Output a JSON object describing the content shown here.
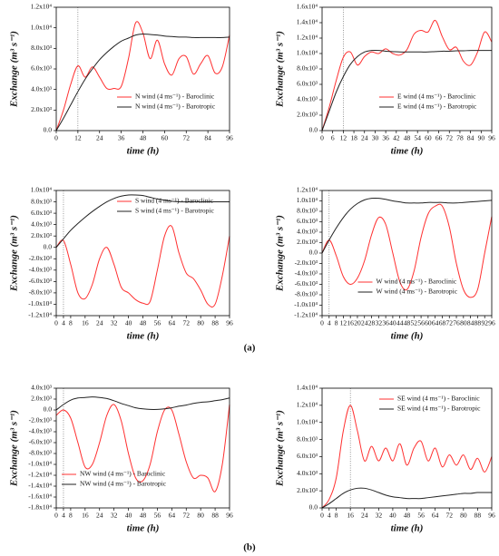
{
  "chart_data": [
    {
      "type": "line",
      "x_label": "time (h)",
      "y_label": "Exchange (m³ s⁻¹)",
      "legend": "lower right",
      "vline": 12,
      "xlim": [
        0,
        96
      ],
      "xticks": [
        0,
        12,
        24,
        36,
        48,
        60,
        72,
        84,
        96
      ],
      "ylim": [
        0,
        12000
      ],
      "yticks": [
        {
          "value": 0,
          "label": "0.0"
        },
        {
          "value": 2000,
          "label": "2.0x10³"
        },
        {
          "value": 4000,
          "label": "4.0x10³"
        },
        {
          "value": 6000,
          "label": "6.0x10³"
        },
        {
          "value": 8000,
          "label": "8.0x10³"
        },
        {
          "value": 10000,
          "label": "1.0x10⁴"
        },
        {
          "value": 12000,
          "label": "1.2x10⁴"
        }
      ],
      "x": [
        0,
        4,
        8,
        12,
        16,
        20,
        24,
        28,
        32,
        36,
        40,
        44,
        48,
        52,
        56,
        60,
        64,
        68,
        72,
        76,
        80,
        84,
        88,
        92,
        96
      ],
      "series": [
        {
          "name": "N wind (4 ms⁻¹) - Baroclinic",
          "color": "#ff3030",
          "values": [
            0,
            2000,
            4500,
            6300,
            5200,
            6200,
            5200,
            4100,
            4100,
            4300,
            7000,
            10500,
            9500,
            7000,
            8800,
            6500,
            5400,
            7000,
            7200,
            5500,
            6500,
            7300,
            5600,
            6200,
            9300
          ]
        },
        {
          "name": "N wind (4 ms⁻¹) - Barotropic",
          "color": "#222222",
          "values": [
            0,
            1200,
            2500,
            3800,
            5000,
            6000,
            6900,
            7600,
            8200,
            8700,
            9000,
            9300,
            9400,
            9350,
            9300,
            9200,
            9150,
            9100,
            9100,
            9050,
            9050,
            9050,
            9050,
            9050,
            9100
          ]
        }
      ]
    },
    {
      "type": "line",
      "x_label": "time (h)",
      "y_label": "Exchange (m³ s⁻¹)",
      "legend": "lower right",
      "vline": 12,
      "xlim": [
        0,
        96
      ],
      "xticks": [
        0,
        6,
        12,
        18,
        24,
        30,
        36,
        42,
        48,
        54,
        60,
        66,
        72,
        78,
        84,
        90,
        96
      ],
      "ylim": [
        0,
        16000
      ],
      "yticks": [
        {
          "value": 0,
          "label": "0.0"
        },
        {
          "value": 2000,
          "label": "2.0x10³"
        },
        {
          "value": 4000,
          "label": "4.0x10³"
        },
        {
          "value": 6000,
          "label": "6.0x10³"
        },
        {
          "value": 8000,
          "label": "8.0x10³"
        },
        {
          "value": 10000,
          "label": "1.0x10⁴"
        },
        {
          "value": 12000,
          "label": "1.2x10⁴"
        },
        {
          "value": 14000,
          "label": "1.4x10⁴"
        },
        {
          "value": 16000,
          "label": "1.6x10⁴"
        }
      ],
      "x": [
        0,
        4,
        8,
        12,
        16,
        20,
        24,
        28,
        32,
        36,
        40,
        44,
        48,
        52,
        56,
        60,
        64,
        68,
        72,
        76,
        80,
        84,
        88,
        92,
        96
      ],
      "series": [
        {
          "name": "E wind (4 ms⁻¹) - Baroclinic",
          "color": "#ff3030",
          "values": [
            0,
            3000,
            6500,
            9500,
            10200,
            8500,
            9600,
            10200,
            10000,
            10600,
            10000,
            9800,
            10500,
            12500,
            13000,
            12800,
            14300,
            12200,
            10500,
            10800,
            9000,
            8500,
            10200,
            12800,
            11500
          ]
        },
        {
          "name": "E wind (4 ms⁻¹) - Barotropic",
          "color": "#222222",
          "values": [
            0,
            2500,
            5000,
            7000,
            8600,
            9600,
            10200,
            10400,
            10400,
            10300,
            10250,
            10200,
            10200,
            10200,
            10200,
            10200,
            10250,
            10300,
            10300,
            10350,
            10350,
            10400,
            10400,
            10400,
            10400
          ]
        }
      ]
    },
    {
      "type": "line",
      "x_label": "time (h)",
      "y_label": "Exchange (m³ s⁻¹)",
      "legend": "upper right",
      "vline": 4,
      "xlim": [
        0,
        96
      ],
      "xticks": [
        0,
        4,
        8,
        16,
        24,
        32,
        40,
        48,
        56,
        64,
        72,
        80,
        88,
        96
      ],
      "ylim": [
        -12000,
        10000
      ],
      "yticks": [
        {
          "value": -12000,
          "label": "-1.2x10⁴"
        },
        {
          "value": -10000,
          "label": "-1.0x10⁴"
        },
        {
          "value": -8000,
          "label": "-8.0x10³"
        },
        {
          "value": -6000,
          "label": "-6.0x10³"
        },
        {
          "value": -4000,
          "label": "-4.0x10³"
        },
        {
          "value": -2000,
          "label": "-2.0x10³"
        },
        {
          "value": 0,
          "label": "0.0"
        },
        {
          "value": 2000,
          "label": "2.0x10³"
        },
        {
          "value": 4000,
          "label": "4.0x10³"
        },
        {
          "value": 6000,
          "label": "6.0x10³"
        },
        {
          "value": 8000,
          "label": "8.0x10³"
        },
        {
          "value": 10000,
          "label": "1.0x10⁴"
        }
      ],
      "x": [
        0,
        4,
        8,
        12,
        16,
        20,
        24,
        28,
        32,
        36,
        40,
        44,
        48,
        52,
        56,
        60,
        64,
        68,
        72,
        76,
        80,
        84,
        88,
        92,
        96
      ],
      "series": [
        {
          "name": "S wind (4 ms⁻¹) - Baroclinic",
          "color": "#ff3030",
          "values": [
            0,
            1200,
            -3000,
            -8000,
            -9000,
            -6500,
            -2000,
            0,
            -3000,
            -7000,
            -8000,
            -9200,
            -9800,
            -9500,
            -4000,
            2000,
            3700,
            -1000,
            -4500,
            -5500,
            -7500,
            -10000,
            -10000,
            -5000,
            2000
          ]
        },
        {
          "name": "S wind (4 ms⁻¹) - Barotropic",
          "color": "#222222",
          "values": [
            0,
            1500,
            3000,
            4200,
            5300,
            6300,
            7200,
            8000,
            8600,
            9000,
            9200,
            9200,
            9100,
            8800,
            8500,
            8300,
            8100,
            8000,
            8000,
            8000,
            8000,
            8000,
            8000,
            8000,
            8000
          ]
        }
      ]
    },
    {
      "type": "line",
      "x_label": "time (h)",
      "y_label": "Exchange (m³ s⁻¹)",
      "legend": "lower center",
      "vline": 4,
      "xlim": [
        0,
        96
      ],
      "xticks": [
        0,
        4,
        8,
        12,
        16,
        20,
        24,
        28,
        32,
        36,
        40,
        44,
        48,
        52,
        56,
        60,
        64,
        68,
        72,
        76,
        80,
        84,
        88,
        92,
        96
      ],
      "ylim": [
        -12000,
        12000
      ],
      "yticks": [
        {
          "value": -12000,
          "label": "-1.2x10⁴"
        },
        {
          "value": -10000,
          "label": "-1.0x10⁴"
        },
        {
          "value": -8000,
          "label": "-8.0x10³"
        },
        {
          "value": -6000,
          "label": "-6.0x10³"
        },
        {
          "value": -4000,
          "label": "-4.0x10³"
        },
        {
          "value": -2000,
          "label": "-2.0x10³"
        },
        {
          "value": 0,
          "label": "0.0"
        },
        {
          "value": 2000,
          "label": "2.0x10³"
        },
        {
          "value": 4000,
          "label": "4.0x10³"
        },
        {
          "value": 6000,
          "label": "6.0x10³"
        },
        {
          "value": 8000,
          "label": "8.0x10³"
        },
        {
          "value": 10000,
          "label": "1.0x10⁴"
        },
        {
          "value": 12000,
          "label": "1.2x10⁴"
        }
      ],
      "x": [
        0,
        4,
        8,
        12,
        16,
        20,
        24,
        28,
        32,
        36,
        40,
        44,
        48,
        52,
        56,
        60,
        64,
        68,
        72,
        76,
        80,
        84,
        88,
        92,
        96
      ],
      "series": [
        {
          "name": "W wind (4 ms⁻¹) - Baroclinic",
          "color": "#ff3030",
          "values": [
            0,
            2500,
            -500,
            -4500,
            -6000,
            -4800,
            -1500,
            3500,
            6800,
            5500,
            0,
            -5500,
            -7000,
            -3500,
            3000,
            7500,
            9000,
            9000,
            5000,
            -2000,
            -7000,
            -8500,
            -7000,
            0,
            7000
          ]
        },
        {
          "name": "W wind (4 ms⁻¹) - Barotropic",
          "color": "#222222",
          "values": [
            0,
            2500,
            4800,
            6800,
            8400,
            9500,
            10200,
            10500,
            10500,
            10300,
            10000,
            9800,
            9600,
            9600,
            9600,
            9700,
            9700,
            9700,
            9600,
            9600,
            9700,
            9800,
            9900,
            10000,
            10100
          ]
        }
      ]
    },
    {
      "type": "line",
      "x_label": "time (h)",
      "y_label": "Exchange (m³ s⁻¹)",
      "legend": "lower left",
      "vline": 4,
      "xlim": [
        0,
        96
      ],
      "xticks": [
        0,
        4,
        8,
        16,
        24,
        32,
        40,
        48,
        56,
        64,
        72,
        80,
        88,
        96
      ],
      "ylim": [
        -18000,
        4000
      ],
      "yticks": [
        {
          "value": -18000,
          "label": "-1.8x10⁴"
        },
        {
          "value": -16000,
          "label": "-1.6x10⁴"
        },
        {
          "value": -14000,
          "label": "-1.4x10⁴"
        },
        {
          "value": -12000,
          "label": "-1.2x10⁴"
        },
        {
          "value": -10000,
          "label": "-1.0x10⁴"
        },
        {
          "value": -8000,
          "label": "-8.0x10³"
        },
        {
          "value": -6000,
          "label": "-6.0x10³"
        },
        {
          "value": -4000,
          "label": "-4.0x10³"
        },
        {
          "value": -2000,
          "label": "-2.0x10³"
        },
        {
          "value": 0,
          "label": "0.0"
        },
        {
          "value": 2000,
          "label": "2.0x10³"
        },
        {
          "value": 4000,
          "label": "4.0x10³"
        }
      ],
      "x": [
        0,
        4,
        8,
        12,
        16,
        20,
        24,
        28,
        32,
        36,
        40,
        44,
        48,
        52,
        56,
        60,
        64,
        68,
        72,
        76,
        80,
        84,
        88,
        92,
        96
      ],
      "series": [
        {
          "name": "NW wind (4 ms⁻¹) - Baroclinic",
          "color": "#ff3030",
          "values": [
            -1000,
            0,
            -1500,
            -6000,
            -10500,
            -10000,
            -6000,
            -1000,
            1000,
            -2000,
            -8000,
            -12500,
            -13000,
            -10000,
            -4000,
            0,
            0,
            -4500,
            -9500,
            -12500,
            -12000,
            -12500,
            -15000,
            -10000,
            1000
          ]
        },
        {
          "name": "NW wind (4 ms⁻¹) - Barotropic",
          "color": "#222222",
          "values": [
            0,
            1000,
            1800,
            2200,
            2300,
            2400,
            2300,
            2100,
            1700,
            1200,
            800,
            400,
            200,
            100,
            100,
            200,
            400,
            700,
            900,
            1200,
            1400,
            1500,
            1700,
            1900,
            2200
          ]
        }
      ]
    },
    {
      "type": "line",
      "x_label": "time (h)",
      "y_label": "Exchange (m³ s⁻¹)",
      "legend": "upper right",
      "vline": 16,
      "xlim": [
        0,
        96
      ],
      "xticks": [
        0,
        4,
        8,
        16,
        24,
        32,
        40,
        48,
        56,
        64,
        72,
        80,
        88,
        96
      ],
      "ylim": [
        0,
        14000
      ],
      "yticks": [
        {
          "value": 0,
          "label": "0.0"
        },
        {
          "value": 2000,
          "label": "2.0x10³"
        },
        {
          "value": 4000,
          "label": "4.0x10³"
        },
        {
          "value": 6000,
          "label": "6.0x10³"
        },
        {
          "value": 8000,
          "label": "8.0x10³"
        },
        {
          "value": 10000,
          "label": "1.0x10⁴"
        },
        {
          "value": 12000,
          "label": "1.2x10⁴"
        },
        {
          "value": 14000,
          "label": "1.4x10⁴"
        }
      ],
      "x": [
        0,
        4,
        8,
        12,
        16,
        20,
        24,
        28,
        32,
        36,
        40,
        44,
        48,
        52,
        56,
        60,
        64,
        68,
        72,
        76,
        80,
        84,
        88,
        92,
        96
      ],
      "series": [
        {
          "name": "SE wind (4 ms⁻¹) - Baroclinic",
          "color": "#ff3030",
          "values": [
            0,
            1000,
            3500,
            9000,
            12000,
            9000,
            5500,
            7200,
            5500,
            7000,
            5500,
            7500,
            5000,
            7000,
            7800,
            5500,
            7000,
            4800,
            6200,
            5000,
            6200,
            4500,
            5800,
            4200,
            6000
          ]
        },
        {
          "name": "SE wind (4 ms⁻¹) - Barotropic",
          "color": "#222222",
          "values": [
            0,
            500,
            1100,
            1700,
            2100,
            2300,
            2300,
            2100,
            1800,
            1500,
            1300,
            1200,
            1100,
            1100,
            1100,
            1200,
            1300,
            1400,
            1500,
            1600,
            1700,
            1700,
            1800,
            1800,
            1800
          ]
        }
      ]
    }
  ],
  "figure_labels": [
    "(a)",
    "(b)"
  ]
}
